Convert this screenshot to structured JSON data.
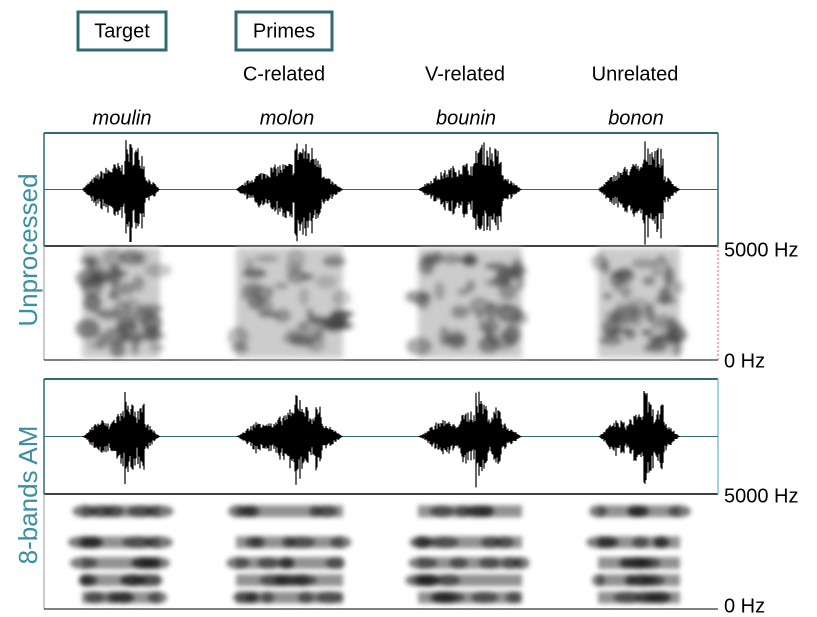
{
  "header": {
    "target": "Target",
    "primes": "Primes"
  },
  "conditions": [
    "C-related",
    "V-related",
    "Unrelated"
  ],
  "words": [
    "moulin",
    "molon",
    "bounin",
    "bonon"
  ],
  "panels": [
    {
      "label": "Unprocessed",
      "freq_top": "5000 Hz",
      "freq_bottom": "0 Hz"
    },
    {
      "label": "8-bands AM",
      "freq_top": "5000 Hz",
      "freq_bottom": "0 Hz"
    }
  ]
}
